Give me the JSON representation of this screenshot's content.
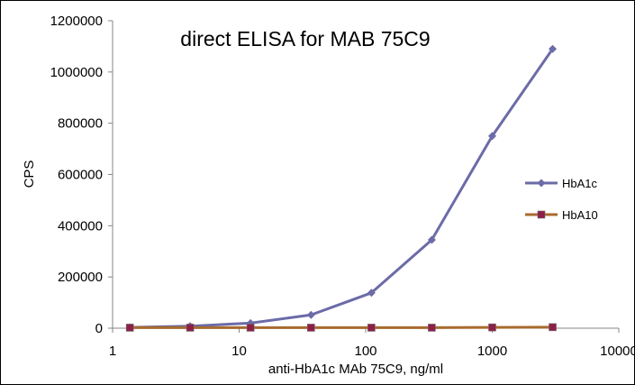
{
  "chart_data": {
    "type": "line",
    "title": "direct ELISA for MAB 75C9",
    "xlabel": "anti-HbA1c MAb 75C9, ng/ml",
    "ylabel": "CPS",
    "x_scale": "log",
    "xlim": [
      1,
      10000
    ],
    "ylim": [
      0,
      1200000
    ],
    "x_ticks": [
      1,
      10,
      100,
      1000,
      10000
    ],
    "y_ticks": [
      0,
      200000,
      400000,
      600000,
      800000,
      1000000,
      1200000
    ],
    "x_tick_labels": [
      "1",
      "10",
      "100",
      "1000",
      "10000"
    ],
    "y_tick_labels": [
      "0",
      "200000",
      "400000",
      "600000",
      "800000",
      "1000000",
      "1200000"
    ],
    "grid": false,
    "legend_position": "right",
    "series": [
      {
        "name": "HbA1c",
        "color": "#6B6BA8",
        "marker": "diamond",
        "x": [
          1.37,
          4.1,
          12.3,
          37,
          111,
          333,
          1000,
          3000
        ],
        "y": [
          3000,
          8000,
          20000,
          52000,
          138000,
          345000,
          750000,
          1090000
        ]
      },
      {
        "name": "HbA10",
        "color": "#A86B2E",
        "marker_color": "#8E1F48",
        "marker": "square",
        "x": [
          1.37,
          4.1,
          12.3,
          37,
          111,
          333,
          1000,
          3000
        ],
        "y": [
          2000,
          2000,
          2000,
          2000,
          2000,
          2000,
          3000,
          4000
        ]
      }
    ]
  }
}
